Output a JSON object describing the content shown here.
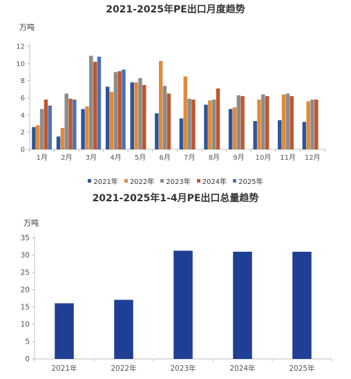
{
  "chart_data": [
    {
      "type": "bar",
      "title": "2021-2025年PE出口月度趋势",
      "unit_label": "万吨",
      "categories": [
        "1月",
        "2月",
        "3月",
        "4月",
        "5月",
        "6月",
        "7月",
        "8月",
        "9月",
        "10月",
        "11月",
        "12月"
      ],
      "series": [
        {
          "name": "2021年",
          "color": "#2e5597",
          "values": [
            2.6,
            1.5,
            4.7,
            7.3,
            7.8,
            4.2,
            3.6,
            5.2,
            4.7,
            3.3,
            3.4,
            3.2
          ]
        },
        {
          "name": "2022年",
          "color": "#e08a3c",
          "values": [
            2.8,
            2.5,
            5.0,
            6.7,
            7.8,
            10.3,
            8.5,
            5.7,
            4.9,
            5.8,
            6.4,
            5.6
          ]
        },
        {
          "name": "2023年",
          "color": "#8c8c8c",
          "values": [
            4.7,
            6.5,
            10.9,
            9.0,
            8.3,
            7.4,
            5.9,
            5.8,
            6.3,
            6.4,
            6.5,
            5.8
          ]
        },
        {
          "name": "2024年",
          "color": "#c0562d",
          "values": [
            5.8,
            5.9,
            10.2,
            9.1,
            7.5,
            6.5,
            5.8,
            7.1,
            6.2,
            6.2,
            6.2,
            5.8
          ]
        },
        {
          "name": "2025年",
          "color": "#4a72b8",
          "values": [
            5.1,
            5.8,
            10.8,
            9.3,
            null,
            null,
            null,
            null,
            null,
            null,
            null,
            null
          ]
        }
      ],
      "ylim": [
        0,
        12
      ],
      "yticks": [
        0,
        2,
        4,
        6,
        8,
        10,
        12
      ],
      "legend_position": "bottom",
      "grid": false
    },
    {
      "type": "bar",
      "title": "2021-2025年1-4月PE出口总量趋势",
      "unit_label": "万吨",
      "categories": [
        "2021年",
        "2022年",
        "2023年",
        "2024年",
        "2025年"
      ],
      "series": [
        {
          "color": "#1f3f94",
          "values": [
            16.1,
            17.1,
            31.3,
            31.0,
            31.0
          ]
        }
      ],
      "ylim": [
        0,
        35
      ],
      "yticks": [
        0,
        5,
        10,
        15,
        20,
        25,
        30,
        35
      ],
      "grid": false
    }
  ]
}
